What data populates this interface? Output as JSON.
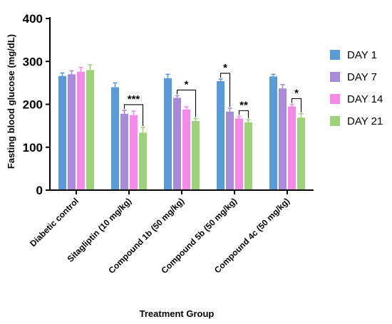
{
  "chart_data": {
    "type": "bar",
    "xlabel": "Treatment Group",
    "ylabel": "Fasting blood glucose (mg/dL)",
    "ylim": [
      0,
      400
    ],
    "yticks": [
      0,
      100,
      200,
      300,
      400
    ],
    "categories": [
      "Diabetic control",
      "Sitagliptin (10 mg/kg)",
      "Compound 1b (50 mg/kg)",
      "Compound 5b (50 mg/kg)",
      "Compound 4c (50 mg/kg)"
    ],
    "series": [
      {
        "name": "DAY 1",
        "color": "#5b9bd5",
        "values": [
          266,
          240,
          261,
          254,
          265
        ],
        "errors": [
          7,
          10,
          9,
          5,
          5
        ]
      },
      {
        "name": "DAY 7",
        "color": "#a78bd8",
        "values": [
          270,
          178,
          215,
          183,
          237
        ],
        "errors": [
          8,
          8,
          5,
          8,
          9
        ]
      },
      {
        "name": "DAY 14",
        "color": "#f48ae8",
        "values": [
          276,
          175,
          188,
          167,
          195
        ],
        "errors": [
          10,
          9,
          6,
          5,
          5
        ]
      },
      {
        "name": "DAY 21",
        "color": "#9ed27a",
        "values": [
          280,
          134,
          161,
          158,
          169
        ],
        "errors": [
          12,
          12,
          6,
          6,
          9
        ]
      }
    ],
    "legend_position": "right",
    "grid": false,
    "annotations": [
      {
        "label": "***",
        "category": 1,
        "from_series": "DAY 7",
        "to_series": "DAY 21"
      },
      {
        "label": "*",
        "category": 2,
        "from_series": "DAY 7",
        "to_series": "DAY 21"
      },
      {
        "label": "*",
        "category": 3,
        "from_series": "DAY 1",
        "to_series": "DAY 7"
      },
      {
        "label": "**",
        "category": 3,
        "from_series": "DAY 14",
        "to_series": "DAY 21"
      },
      {
        "label": "*",
        "category": 4,
        "from_series": "DAY 14",
        "to_series": "DAY 21"
      }
    ]
  }
}
